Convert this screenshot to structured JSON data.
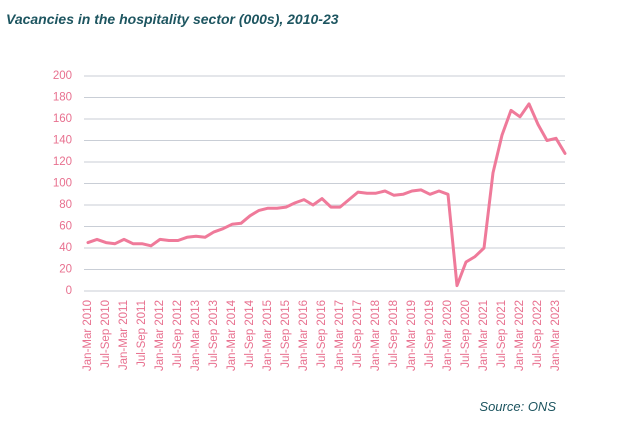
{
  "chart_data": {
    "type": "line",
    "title": "Vacancies in the hospitality sector (000s), 2010-23",
    "source": "Source: ONS",
    "categories": [
      "Jan-Mar 2010",
      null,
      "Jul-Sep 2010",
      null,
      "Jan-Mar 2011",
      null,
      "Jul-Sep 2011",
      null,
      "Jan-Mar 2012",
      null,
      "Jul-Sep 2012",
      null,
      "Jan-Mar 2013",
      null,
      "Jul-Sep 2013",
      null,
      "Jan-Mar 2014",
      null,
      "Jul-Sep 2014",
      null,
      "Jan-Mar 2015",
      null,
      "Jul-Sep 2015",
      null,
      "Jan-Mar 2016",
      null,
      "Jul-Sep 2016",
      null,
      "Jan-Mar 2017",
      null,
      "Jul-Sep 2017",
      null,
      "Jan-Mar 2018",
      null,
      "Jul-Sep 2018",
      null,
      "Jan-Mar 2019",
      null,
      "Jul-Sep 2019",
      null,
      "Jan-Mar 2020",
      null,
      "Jul-Sep 2020",
      null,
      "Jan-Mar 2021",
      null,
      "Jul-Sep 2021",
      null,
      "Jan-Mar 2022",
      null,
      "Jul-Sep 2022",
      null,
      "Jan-Mar 2023",
      null
    ],
    "values": [
      45,
      48,
      45,
      44,
      48,
      44,
      44,
      42,
      48,
      47,
      47,
      50,
      51,
      50,
      55,
      58,
      62,
      63,
      70,
      75,
      77,
      77,
      78,
      82,
      85,
      80,
      86,
      78,
      78,
      85,
      92,
      91,
      91,
      93,
      89,
      90,
      93,
      94,
      90,
      93,
      90,
      5,
      27,
      32,
      40,
      110,
      145,
      168,
      162,
      174,
      155,
      140,
      142,
      128
    ],
    "color": "#ef7a9a",
    "ylim": [
      0,
      200
    ],
    "yticks": [
      0,
      20,
      40,
      60,
      80,
      100,
      120,
      140,
      160,
      180,
      200
    ],
    "grid": true
  }
}
